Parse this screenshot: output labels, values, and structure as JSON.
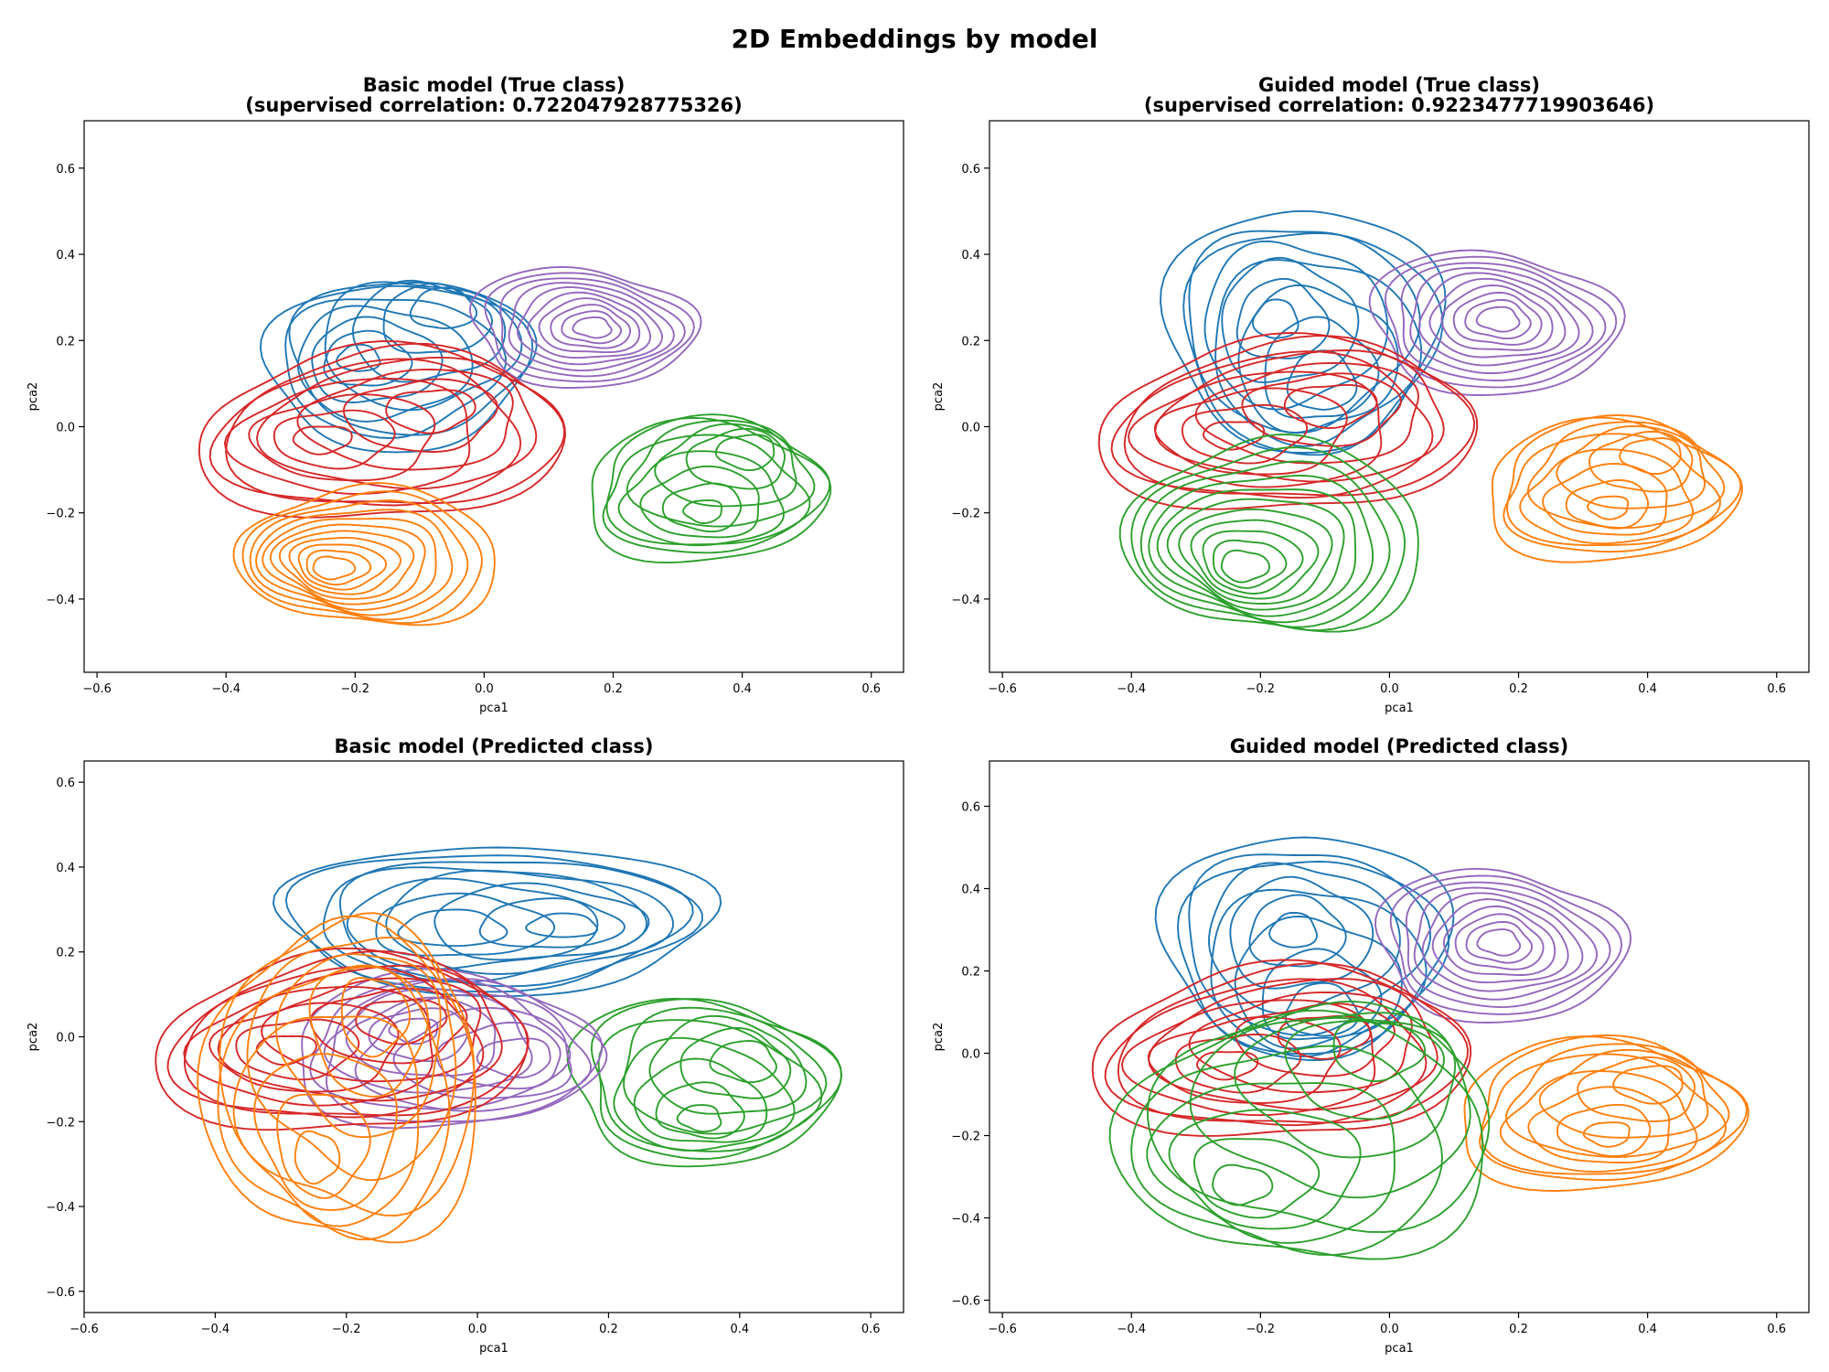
{
  "figure": {
    "title": "2D Embeddings by model"
  },
  "palette": {
    "blue": "#1f77b4",
    "orange": "#ff7f0e",
    "green": "#2ca02c",
    "red": "#d62728",
    "purple": "#9467bd"
  },
  "chart_data": [
    {
      "type": "contour",
      "title_lines": [
        "Basic model (True class)",
        "(supervised correlation: 0.722047928775326)"
      ],
      "xlabel": "pca1",
      "ylabel": "pca2",
      "xlim": [
        -0.62,
        0.65
      ],
      "ylim": [
        -0.57,
        0.71
      ],
      "xticks": [
        -0.6,
        -0.4,
        -0.2,
        0.0,
        0.2,
        0.4,
        0.6
      ],
      "xtick_labels": [
        "−0.6",
        "−0.4",
        "−0.2",
        "0.0",
        "0.2",
        "0.4",
        "0.6"
      ],
      "yticks": [
        -0.4,
        -0.2,
        0.0,
        0.2,
        0.4,
        0.6
      ],
      "ytick_labels": [
        "−0.4",
        "−0.2",
        "0.0",
        "0.2",
        "0.4",
        "0.6"
      ],
      "series": [
        {
          "color": "#1f77b4",
          "levels": 11,
          "center": [
            -0.13,
            0.14
          ],
          "radius": [
            0.21,
            0.22
          ],
          "peaks": [
            [
              -0.2,
              0.16
            ],
            [
              -0.05,
              0.3
            ]
          ]
        },
        {
          "color": "#9467bd",
          "levels": 10,
          "center": [
            0.15,
            0.23
          ],
          "radius": [
            0.19,
            0.15
          ],
          "peaks": [
            [
              0.17,
              0.23
            ]
          ]
        },
        {
          "color": "#2ca02c",
          "levels": 11,
          "center": [
            0.34,
            -0.15
          ],
          "radius": [
            0.21,
            0.17
          ],
          "peaks": [
            [
              0.34,
              -0.2
            ],
            [
              0.42,
              -0.04
            ]
          ]
        },
        {
          "color": "#d62728",
          "levels": 11,
          "center": [
            -0.15,
            -0.02
          ],
          "radius": [
            0.3,
            0.22
          ],
          "peaks": [
            [
              -0.26,
              -0.03
            ],
            [
              -0.07,
              0.05
            ]
          ]
        },
        {
          "color": "#ff7f0e",
          "levels": 11,
          "center": [
            -0.17,
            -0.3
          ],
          "radius": [
            0.21,
            0.18
          ],
          "peaks": [
            [
              -0.24,
              -0.33
            ]
          ]
        }
      ]
    },
    {
      "type": "contour",
      "title_lines": [
        "Guided model (True class)",
        "(supervised correlation: 0.9223477719903646)"
      ],
      "xlabel": "pca1",
      "ylabel": "pca2",
      "xlim": [
        -0.62,
        0.65
      ],
      "ylim": [
        -0.57,
        0.71
      ],
      "xticks": [
        -0.6,
        -0.4,
        -0.2,
        0.0,
        0.2,
        0.4,
        0.6
      ],
      "xtick_labels": [
        "−0.6",
        "−0.4",
        "−0.2",
        "0.0",
        "0.2",
        "0.4",
        "0.6"
      ],
      "yticks": [
        -0.4,
        -0.2,
        0.0,
        0.2,
        0.4,
        0.6
      ],
      "ytick_labels": [
        "−0.4",
        "−0.2",
        "0.0",
        "0.2",
        "0.4",
        "0.6"
      ],
      "series": [
        {
          "color": "#1f77b4",
          "levels": 11,
          "center": [
            -0.13,
            0.23
          ],
          "radius": [
            0.22,
            0.32
          ],
          "peaks": [
            [
              -0.18,
              0.25
            ],
            [
              -0.1,
              0.08
            ]
          ]
        },
        {
          "color": "#9467bd",
          "levels": 10,
          "center": [
            0.16,
            0.24
          ],
          "radius": [
            0.21,
            0.18
          ],
          "peaks": [
            [
              0.17,
              0.25
            ]
          ]
        },
        {
          "color": "#ff7f0e",
          "levels": 11,
          "center": [
            0.34,
            -0.15
          ],
          "radius": [
            0.22,
            0.17
          ],
          "peaks": [
            [
              0.34,
              -0.19
            ],
            [
              0.42,
              -0.05
            ]
          ]
        },
        {
          "color": "#d62728",
          "levels": 11,
          "center": [
            -0.15,
            0.0
          ],
          "radius": [
            0.31,
            0.22
          ],
          "peaks": [
            [
              -0.25,
              -0.02
            ],
            [
              -0.08,
              0.06
            ]
          ]
        },
        {
          "color": "#2ca02c",
          "levels": 11,
          "center": [
            -0.17,
            -0.25
          ],
          "radius": [
            0.24,
            0.25
          ],
          "peaks": [
            [
              -0.23,
              -0.33
            ]
          ]
        }
      ]
    },
    {
      "type": "contour",
      "title_lines": [
        "Basic model (Predicted class)"
      ],
      "xlabel": "pca1",
      "ylabel": "pca2",
      "xlim": [
        -0.6,
        0.65
      ],
      "ylim": [
        -0.65,
        0.65
      ],
      "xticks": [
        -0.6,
        -0.4,
        -0.2,
        0.0,
        0.2,
        0.4,
        0.6
      ],
      "xtick_labels": [
        "−0.6",
        "−0.4",
        "−0.2",
        "0.0",
        "0.2",
        "0.4",
        "0.6"
      ],
      "yticks": [
        -0.6,
        -0.4,
        -0.2,
        0.0,
        0.2,
        0.4,
        0.6
      ],
      "ytick_labels": [
        "−0.6",
        "−0.4",
        "−0.2",
        "0.0",
        "0.2",
        "0.4",
        "0.6"
      ],
      "series": [
        {
          "color": "#1f77b4",
          "levels": 11,
          "center": [
            0.02,
            0.28
          ],
          "radius": [
            0.34,
            0.2
          ],
          "peaks": [
            [
              0.14,
              0.26
            ],
            [
              -0.05,
              0.25
            ]
          ]
        },
        {
          "color": "#2ca02c",
          "levels": 11,
          "center": [
            0.34,
            -0.1
          ],
          "radius": [
            0.22,
            0.21
          ],
          "peaks": [
            [
              0.34,
              -0.2
            ],
            [
              0.42,
              -0.05
            ]
          ]
        },
        {
          "color": "#9467bd",
          "levels": 11,
          "center": [
            -0.05,
            -0.04
          ],
          "radius": [
            0.26,
            0.19
          ],
          "peaks": [
            [
              -0.1,
              0.02
            ],
            [
              0.08,
              -0.05
            ]
          ]
        },
        {
          "color": "#d62728",
          "levels": 11,
          "center": [
            -0.2,
            -0.02
          ],
          "radius": [
            0.3,
            0.23
          ],
          "peaks": [
            [
              -0.3,
              -0.03
            ],
            [
              -0.1,
              0.05
            ]
          ]
        },
        {
          "color": "#ff7f0e",
          "levels": 11,
          "center": [
            -0.2,
            -0.1
          ],
          "radius": [
            0.22,
            0.42
          ],
          "peaks": [
            [
              -0.25,
              -0.3
            ],
            [
              -0.15,
              0.08
            ]
          ]
        }
      ]
    },
    {
      "type": "contour",
      "title_lines": [
        "Guided model (Predicted class)"
      ],
      "xlabel": "pca1",
      "ylabel": "pca2",
      "xlim": [
        -0.62,
        0.65
      ],
      "ylim": [
        -0.63,
        0.71
      ],
      "xticks": [
        -0.6,
        -0.4,
        -0.2,
        0.0,
        0.2,
        0.4,
        0.6
      ],
      "xtick_labels": [
        "−0.6",
        "−0.4",
        "−0.2",
        "0.0",
        "0.2",
        "0.4",
        "0.6"
      ],
      "yticks": [
        -0.6,
        -0.4,
        -0.2,
        0.0,
        0.2,
        0.4,
        0.6
      ],
      "ytick_labels": [
        "−0.6",
        "−0.4",
        "−0.2",
        "0.0",
        "0.2",
        "0.4",
        "0.6"
      ],
      "series": [
        {
          "color": "#1f77b4",
          "levels": 11,
          "center": [
            -0.13,
            0.27
          ],
          "radius": [
            0.23,
            0.3
          ],
          "peaks": [
            [
              -0.15,
              0.3
            ],
            [
              -0.1,
              0.07
            ]
          ]
        },
        {
          "color": "#9467bd",
          "levels": 10,
          "center": [
            0.17,
            0.26
          ],
          "radius": [
            0.21,
            0.2
          ],
          "peaks": [
            [
              0.17,
              0.27
            ]
          ]
        },
        {
          "color": "#ff7f0e",
          "levels": 11,
          "center": [
            0.32,
            -0.15
          ],
          "radius": [
            0.25,
            0.19
          ],
          "peaks": [
            [
              0.34,
              -0.2
            ],
            [
              0.42,
              -0.06
            ]
          ]
        },
        {
          "color": "#d62728",
          "levels": 11,
          "center": [
            -0.16,
            0.0
          ],
          "radius": [
            0.31,
            0.23
          ],
          "peaks": [
            [
              -0.26,
              -0.03
            ],
            [
              -0.09,
              0.05
            ]
          ]
        },
        {
          "color": "#2ca02c",
          "levels": 11,
          "center": [
            -0.12,
            -0.2
          ],
          "radius": [
            0.3,
            0.33
          ],
          "peaks": [
            [
              -0.24,
              -0.33
            ],
            [
              0.0,
              0.05
            ]
          ]
        }
      ]
    }
  ]
}
